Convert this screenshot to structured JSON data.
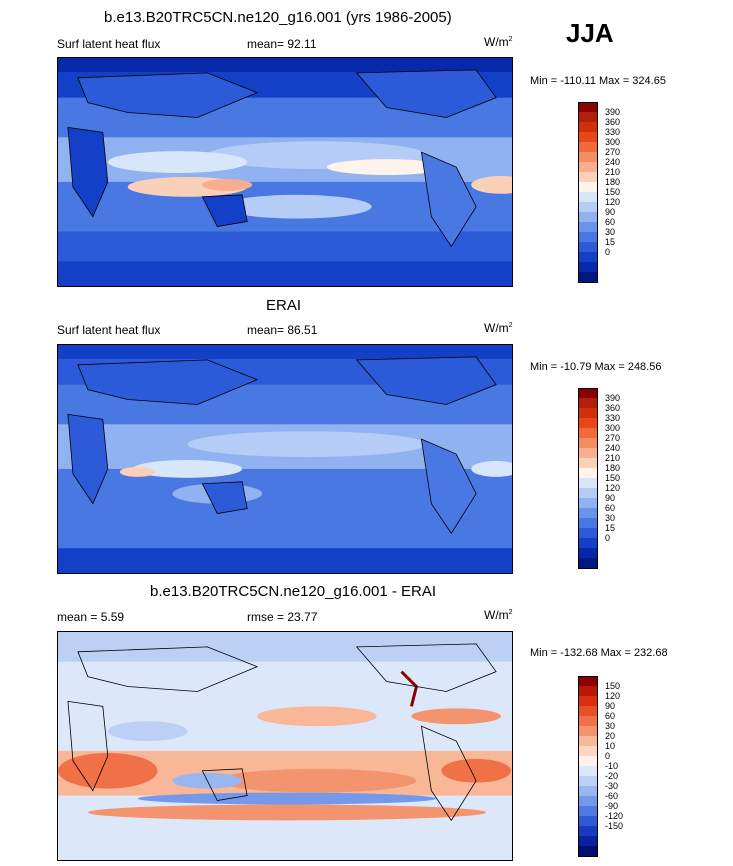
{
  "season": "JJA",
  "panels": [
    {
      "title": "b.e13.B20TRC5CN.ne120_g16.001 (yrs 1986-2005)",
      "left_label": "Surf latent heat flux",
      "mean_label": "mean=  92.11",
      "units": "W/m",
      "units_sup": "2",
      "minmax": "Min = -110.11 Max = 324.65",
      "legend": {
        "colors": [
          "#8b0000",
          "#b0200a",
          "#d03008",
          "#e84818",
          "#f06a3a",
          "#f48c62",
          "#f8ae8e",
          "#fad0b8",
          "#fff4ec",
          "#d8e6fa",
          "#b4ccf6",
          "#90b2f0",
          "#6a94ea",
          "#4a78e2",
          "#2c5ad8",
          "#1440c8",
          "#0828aa",
          "#001880"
        ],
        "labels": [
          "390",
          "360",
          "330",
          "300",
          "270",
          "240",
          "210",
          "180",
          "150",
          "120",
          "90",
          "60",
          "30",
          "15",
          "0"
        ]
      }
    },
    {
      "title": "ERAI",
      "left_label": "Surf latent heat flux",
      "mean_label": "mean=  86.51",
      "units": "W/m",
      "units_sup": "2",
      "minmax": "Min = -10.79 Max = 248.56",
      "legend": {
        "colors": [
          "#8b0000",
          "#b0200a",
          "#d03008",
          "#e84818",
          "#f06a3a",
          "#f48c62",
          "#f8ae8e",
          "#fad0b8",
          "#fff4ec",
          "#d8e6fa",
          "#b4ccf6",
          "#90b2f0",
          "#6a94ea",
          "#4a78e2",
          "#2c5ad8",
          "#1440c8",
          "#0828aa",
          "#001880"
        ],
        "labels": [
          "390",
          "360",
          "330",
          "300",
          "270",
          "240",
          "210",
          "180",
          "150",
          "120",
          "90",
          "60",
          "30",
          "15",
          "0"
        ]
      }
    },
    {
      "title": "b.e13.B20TRC5CN.ne120_g16.001 - ERAI",
      "left_label": "mean =   5.59",
      "mean_label": "rmse =  23.77",
      "units": "W/m",
      "units_sup": "2",
      "minmax": "Min = -132.68 Max = 232.68",
      "legend": {
        "colors": [
          "#8b0000",
          "#b81808",
          "#d83010",
          "#e85028",
          "#f07048",
          "#f4946e",
          "#f8b898",
          "#fcd8c4",
          "#fff2ea",
          "#dce8fa",
          "#bcd0f6",
          "#98b6f0",
          "#7498ea",
          "#507ae2",
          "#2e5ad6",
          "#183cc0",
          "#0a22a0",
          "#001070"
        ],
        "labels": [
          "150",
          "120",
          "90",
          "60",
          "30",
          "20",
          "10",
          "0",
          "-10",
          "-20",
          "-30",
          "-60",
          "-90",
          "-120",
          "-150"
        ]
      }
    }
  ]
}
